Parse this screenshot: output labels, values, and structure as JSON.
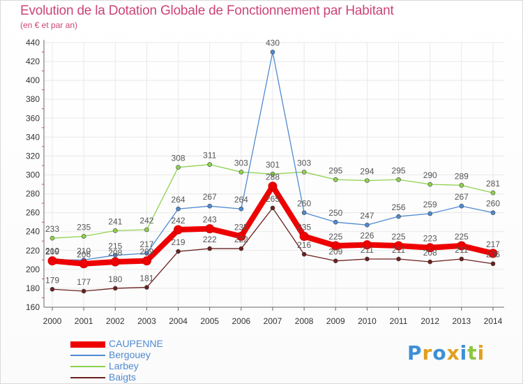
{
  "header": {
    "title": "Evolution de la Dotation Globale de Fonctionnement par Habitant",
    "subtitle": "(en € et par an)"
  },
  "logo": {
    "text": "Proxiti",
    "colors": [
      "#3d8fd6",
      "#e0a020",
      "#3d8fd6",
      "#e0a020",
      "#3d8fd6",
      "#8cc63f",
      "#e0a020"
    ]
  },
  "chart_data": {
    "type": "line",
    "title": "Evolution de la Dotation Globale de Fonctionnement par Habitant",
    "subtitle": "(en € et par an)",
    "xlabel": "",
    "ylabel": "",
    "ylim": [
      160,
      440
    ],
    "yticks": [
      160,
      180,
      200,
      220,
      240,
      260,
      280,
      300,
      320,
      340,
      360,
      380,
      400,
      420,
      440
    ],
    "categories": [
      "2000",
      "2001",
      "2002",
      "2003",
      "2004",
      "2005",
      "2006",
      "2007",
      "2008",
      "2009",
      "2010",
      "2011",
      "2012",
      "2013",
      "2014"
    ],
    "legend_position": "bottom-left",
    "grid": true,
    "series": [
      {
        "name": "Larbey",
        "color": "#8fd14f",
        "values": [
          233,
          235,
          241,
          242,
          308,
          311,
          303,
          301,
          303,
          295,
          294,
          295,
          290,
          289,
          281
        ]
      },
      {
        "name": "Bergouey",
        "color": "#4f8ad2",
        "values": [
          210,
          210,
          215,
          217,
          264,
          267,
          264,
          430,
          260,
          250,
          247,
          256,
          259,
          267,
          260
        ]
      },
      {
        "name": "Baigts",
        "color": "#6b1f1f",
        "values": [
          179,
          177,
          180,
          181,
          219,
          222,
          222,
          265,
          216,
          209,
          211,
          211,
          208,
          211,
          206
        ]
      },
      {
        "name": "CAUPENNE",
        "color": "#ee0000",
        "values": [
          209,
          206,
          208,
          209,
          242,
          243,
          235,
          288,
          235,
          225,
          226,
          225,
          223,
          225,
          217
        ]
      }
    ],
    "legend_order": [
      "CAUPENNE",
      "Bergouey",
      "Larbey",
      "Baigts"
    ]
  }
}
